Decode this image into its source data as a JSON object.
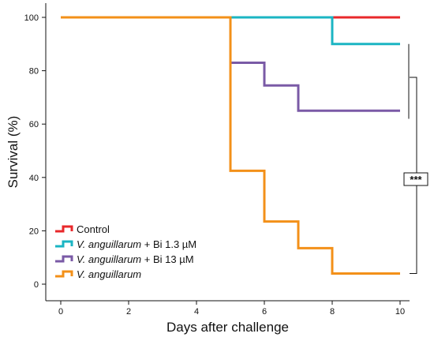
{
  "chart_data": {
    "type": "line",
    "step": true,
    "title": "",
    "xlabel": "Days after challenge",
    "ylabel": "Survival (%)",
    "xlim": [
      0,
      10
    ],
    "ylim": [
      0,
      100
    ],
    "xticks": [
      0,
      2,
      4,
      6,
      8,
      10
    ],
    "yticks": [
      0,
      20,
      40,
      60,
      80,
      100
    ],
    "grid": false,
    "legend_position": "bottom-left",
    "series": [
      {
        "name": "Control",
        "name_italic": "",
        "name_rest": "Control",
        "color": "#e8282b",
        "points": [
          [
            0,
            100
          ],
          [
            10,
            100
          ]
        ]
      },
      {
        "name": "V. anguillarum + Bi 1.3 µM",
        "name_italic": "V. anguillarum",
        "name_rest": " + Bi 1.3 µM",
        "color": "#1bb5c3",
        "points": [
          [
            5,
            100
          ],
          [
            8,
            100
          ],
          [
            8,
            90
          ],
          [
            10,
            90
          ]
        ]
      },
      {
        "name": "V. anguillarum + Bi 13 µM",
        "name_italic": "V. anguillarum",
        "name_rest": " + Bi 13 µM",
        "color": "#7a5aa6",
        "points": [
          [
            5,
            100
          ],
          [
            5,
            83
          ],
          [
            6,
            83
          ],
          [
            6,
            74.5
          ],
          [
            7,
            74.5
          ],
          [
            7,
            65
          ],
          [
            10,
            65
          ]
        ]
      },
      {
        "name": "V. anguillarum",
        "name_italic": "V. anguillarum",
        "name_rest": "",
        "color": "#f39019",
        "points": [
          [
            0,
            100
          ],
          [
            5,
            100
          ],
          [
            5,
            42.5
          ],
          [
            6,
            42.5
          ],
          [
            6,
            23.5
          ],
          [
            7,
            23.5
          ],
          [
            7,
            13.5
          ],
          [
            8,
            13.5
          ],
          [
            8,
            4
          ],
          [
            10,
            4
          ]
        ]
      }
    ],
    "significance": {
      "label": "***",
      "inner_bracket_y": [
        90,
        62
      ],
      "outer_bracket_y": [
        77.5,
        4
      ]
    }
  }
}
